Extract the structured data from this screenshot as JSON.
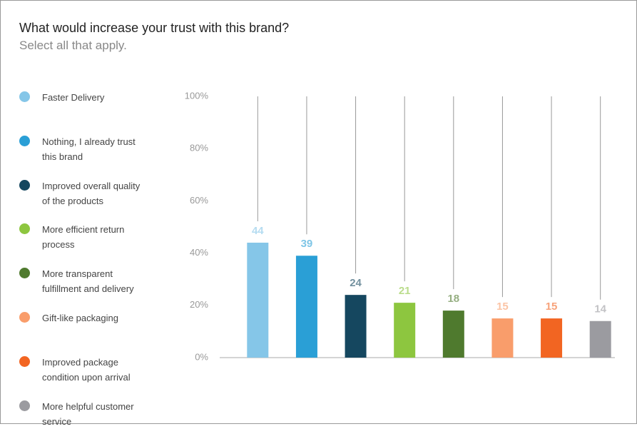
{
  "chart_data": {
    "type": "bar",
    "title": "What would increase your trust with this brand?",
    "subtitle": "Select all that apply.",
    "categories": [
      "Faster Delivery",
      "Nothing, I already trust this brand",
      "Improved overall quality of the products",
      "More efficient return process",
      "More transparent fulfillment and delivery",
      "Gift-like packaging",
      "Improved package condition upon arrival",
      "More helpful customer service"
    ],
    "values": [
      44,
      39,
      24,
      21,
      18,
      15,
      15,
      14
    ],
    "colors": [
      "#85c6e8",
      "#2a9fd6",
      "#15475f",
      "#8dc63f",
      "#4f7a2e",
      "#f99d6b",
      "#f26522",
      "#9b9ba0"
    ],
    "ylim": [
      0,
      100
    ],
    "yticks": [
      {
        "value": 0,
        "label": "0%"
      },
      {
        "value": 20,
        "label": "20%"
      },
      {
        "value": 40,
        "label": "40%"
      },
      {
        "value": 60,
        "label": "60%"
      },
      {
        "value": 80,
        "label": "80%"
      },
      {
        "value": 100,
        "label": "100%"
      }
    ]
  }
}
